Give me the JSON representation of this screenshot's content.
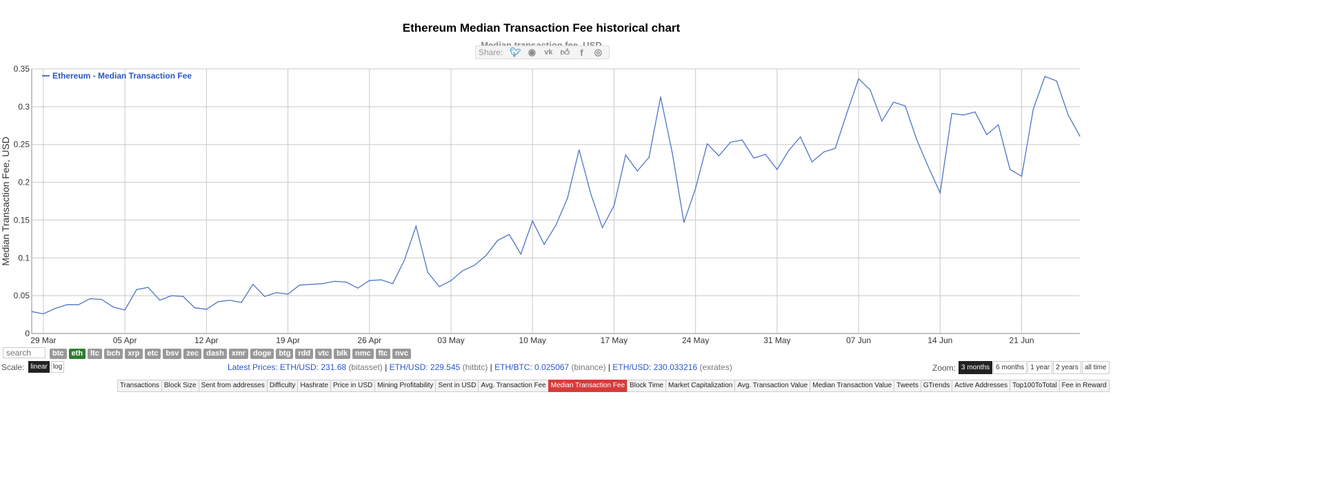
{
  "header": {
    "title": "Ethereum Median Transaction Fee historical chart",
    "subtitle": "Median transaction fee, USD",
    "share_label": "Share:",
    "share_icons": [
      "twitter-icon",
      "reddit-icon",
      "vk-icon",
      "like-icon",
      "facebook-icon",
      "weibo-icon"
    ]
  },
  "chart_data": {
    "type": "line",
    "title": "",
    "xlabel": "",
    "ylabel": "Median Transaction Fee, USD",
    "ylim": [
      0,
      0.35
    ],
    "yticks": [
      "0",
      "0.05",
      "0.1",
      "0.15",
      "0.2",
      "0.25",
      "0.3",
      "0.35"
    ],
    "ytick_values": [
      0,
      0.05,
      0.1,
      0.15,
      0.2,
      0.25,
      0.3,
      0.35
    ],
    "xticks": [
      "29 Mar",
      "05 Apr",
      "12 Apr",
      "19 Apr",
      "26 Apr",
      "03 May",
      "10 May",
      "17 May",
      "24 May",
      "31 May",
      "07 Jun",
      "14 Jun",
      "21 Jun"
    ],
    "xtick_days": [
      1,
      8,
      15,
      22,
      29,
      36,
      43,
      50,
      57,
      64,
      71,
      78,
      85
    ],
    "x_unit": "days",
    "x_start": "28 Mar",
    "xlim": [
      0,
      90
    ],
    "grid": true,
    "legend_position": "top-left",
    "color": "#4f74c6",
    "series": [
      {
        "name": "Ethereum - Median Transaction Fee",
        "values": [
          0.029,
          0.026,
          0.033,
          0.038,
          0.038,
          0.046,
          0.045,
          0.035,
          0.031,
          0.058,
          0.061,
          0.044,
          0.05,
          0.049,
          0.034,
          0.032,
          0.042,
          0.044,
          0.041,
          0.065,
          0.049,
          0.054,
          0.052,
          0.064,
          0.065,
          0.066,
          0.069,
          0.068,
          0.06,
          0.07,
          0.071,
          0.066,
          0.097,
          0.142,
          0.081,
          0.062,
          0.07,
          0.083,
          0.09,
          0.103,
          0.123,
          0.131,
          0.105,
          0.149,
          0.118,
          0.143,
          0.179,
          0.243,
          0.185,
          0.14,
          0.169,
          0.236,
          0.215,
          0.233,
          0.313,
          0.239,
          0.147,
          0.192,
          0.251,
          0.235,
          0.253,
          0.256,
          0.232,
          0.237,
          0.217,
          0.242,
          0.26,
          0.227,
          0.24,
          0.245,
          0.292,
          0.337,
          0.322,
          0.281,
          0.306,
          0.301,
          0.256,
          0.22,
          0.186,
          0.291,
          0.289,
          0.293,
          0.263,
          0.276,
          0.217,
          0.208,
          0.297,
          0.34,
          0.334,
          0.289,
          0.261
        ]
      }
    ]
  },
  "coins": {
    "search_placeholder": "search",
    "items": [
      "btc",
      "eth",
      "ltc",
      "bch",
      "xrp",
      "etc",
      "bsv",
      "zec",
      "dash",
      "xmr",
      "doge",
      "btg",
      "rdd",
      "vtc",
      "blk",
      "nmc",
      "ftc",
      "nvc"
    ],
    "active": "eth"
  },
  "scale": {
    "label": "Scale:",
    "linear": "linear",
    "log": "log"
  },
  "prices": {
    "label": "Latest Prices:",
    "items": [
      {
        "pair": "ETH/USD: 231.68",
        "src": "(bitasset)"
      },
      {
        "pair": "ETH/USD: 229.545",
        "src": "(hitbtc)"
      },
      {
        "pair": "ETH/BTC: 0.025067",
        "src": "(binance)"
      },
      {
        "pair": "ETH/USD: 230.033216",
        "src": "(exrates)"
      }
    ]
  },
  "zoom": {
    "label": "Zoom:",
    "options": [
      "3 months",
      "6 months",
      "1 year",
      "2 years",
      "all time"
    ],
    "active": "3 months"
  },
  "nav": {
    "items": [
      "Transactions",
      "Block Size",
      "Sent from addresses",
      "Difficulty",
      "Hashrate",
      "Price in USD",
      "Mining Profitability",
      "Sent in USD",
      "Avg. Transaction Fee",
      "Median Transaction Fee",
      "Block Time",
      "Market Capitalization",
      "Avg. Transaction Value",
      "Median Transaction Value",
      "Tweets",
      "GTrends",
      "Active Addresses",
      "Top100ToTotal",
      "Fee in Reward"
    ],
    "active": "Median Transaction Fee"
  }
}
